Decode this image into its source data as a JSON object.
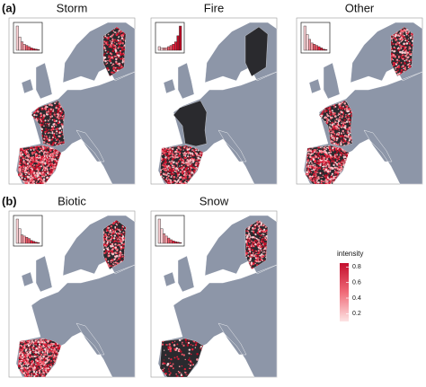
{
  "row_labels": [
    "(a)",
    "(b)"
  ],
  "panels": [
    {
      "title": "Storm",
      "histogram": [
        1.0,
        0.55,
        0.35,
        0.25,
        0.2,
        0.15,
        0.1,
        0.07,
        0.05,
        0.03
      ]
    },
    {
      "title": "Fire",
      "histogram": [
        0.15,
        0.1,
        0.1,
        0.1,
        0.15,
        0.2,
        0.25,
        0.35,
        0.6,
        1.0
      ]
    },
    {
      "title": "Other",
      "histogram": [
        1.0,
        0.65,
        0.45,
        0.3,
        0.25,
        0.2,
        0.15,
        0.1,
        0.05,
        0.03
      ]
    },
    {
      "title": "Biotic",
      "histogram": [
        1.0,
        0.6,
        0.35,
        0.3,
        0.25,
        0.2,
        0.12,
        0.08,
        0.05,
        0.03
      ]
    },
    {
      "title": "Snow",
      "histogram": [
        1.0,
        0.6,
        0.4,
        0.3,
        0.22,
        0.15,
        0.1,
        0.07,
        0.05,
        0.03
      ]
    }
  ],
  "colorbar": {
    "title": "intensity",
    "range": [
      0.1,
      0.85
    ],
    "ticks": [
      0.2,
      0.4,
      0.6,
      0.8
    ]
  }
}
